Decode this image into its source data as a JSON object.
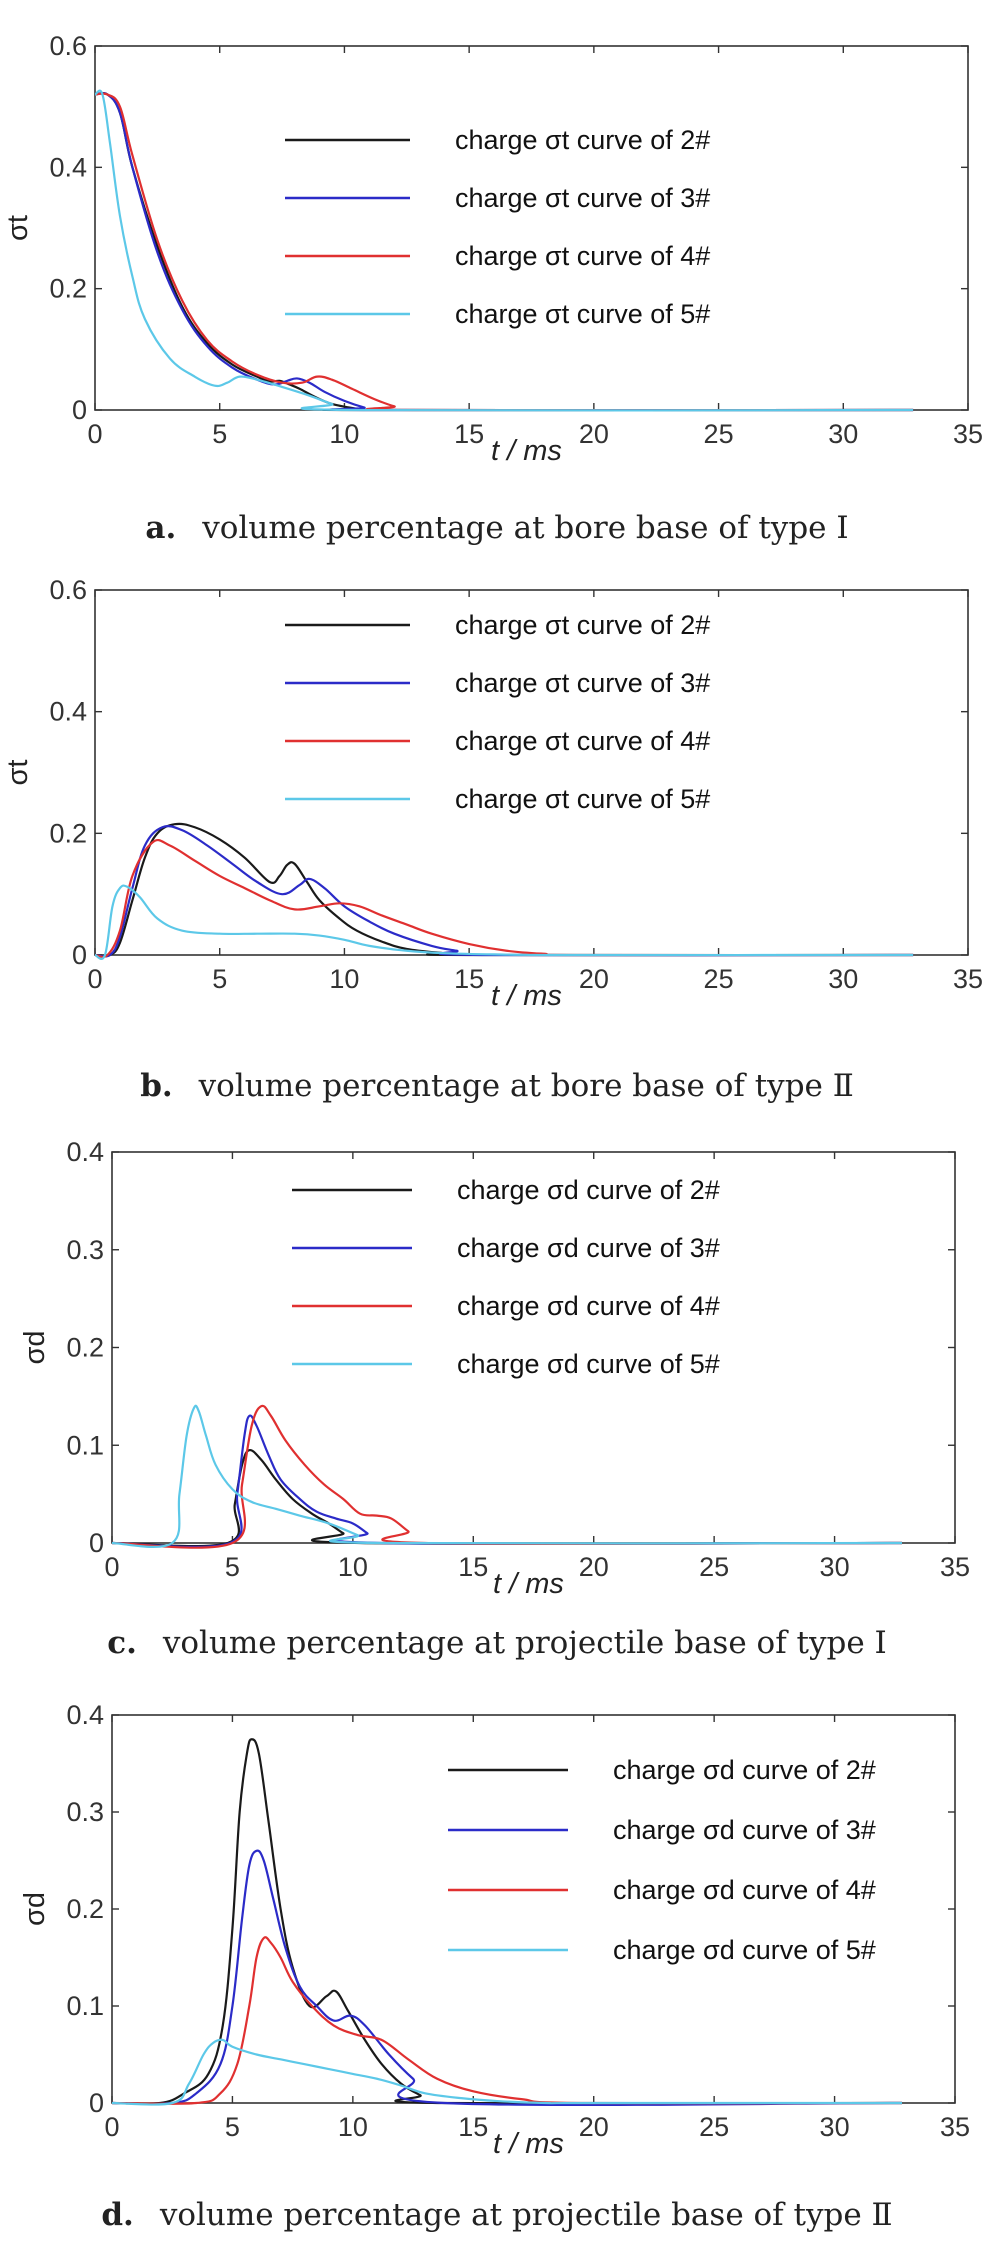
{
  "chart_data": [
    {
      "type": "line",
      "caption_label": "a.",
      "caption": "volume percentage at bore base of type Ⅰ",
      "xlabel": "t / ms",
      "ylabel": "σt",
      "xlim": [
        0,
        35
      ],
      "ylim": [
        0,
        0.6
      ],
      "xticks": [
        "0",
        "5",
        "10",
        "15",
        "20",
        "25",
        "30",
        "35"
      ],
      "yticks": [
        "0",
        "0.2",
        "0.4",
        "0.6"
      ],
      "legend_placement": "top-center",
      "series": [
        {
          "name": "charge σt curve of 2#",
          "color": "#1a1a1a",
          "x": [
            0,
            0.5,
            1.0,
            1.5,
            2.5,
            3.5,
            4.5,
            5.5,
            6.5,
            7.0,
            7.4,
            7.8,
            8.2,
            8.8,
            9.5,
            10.5,
            11.0,
            32.8
          ],
          "y": [
            0.52,
            0.52,
            0.49,
            0.4,
            0.27,
            0.17,
            0.11,
            0.075,
            0.055,
            0.047,
            0.048,
            0.042,
            0.035,
            0.022,
            0.01,
            0.002,
            0.0,
            0.0
          ]
        },
        {
          "name": "charge σt curve of 3#",
          "color": "#2b2bc8",
          "x": [
            0,
            0.5,
            1.0,
            1.5,
            2.5,
            3.5,
            4.5,
            5.5,
            6.5,
            7.2,
            7.7,
            8.1,
            8.6,
            9.2,
            10.0,
            10.8,
            11.3,
            32.8
          ],
          "y": [
            0.52,
            0.52,
            0.49,
            0.4,
            0.26,
            0.165,
            0.105,
            0.07,
            0.05,
            0.042,
            0.048,
            0.052,
            0.045,
            0.03,
            0.015,
            0.004,
            0.0,
            0.0
          ]
        },
        {
          "name": "charge σt curve of 4#",
          "color": "#e03030",
          "x": [
            0,
            0.5,
            1.0,
            1.5,
            2.5,
            3.5,
            4.5,
            5.5,
            6.5,
            7.5,
            8.3,
            8.9,
            9.5,
            10.3,
            11.2,
            12.0,
            12.7,
            32.8
          ],
          "y": [
            0.52,
            0.52,
            0.5,
            0.42,
            0.28,
            0.18,
            0.115,
            0.08,
            0.058,
            0.045,
            0.045,
            0.055,
            0.05,
            0.035,
            0.018,
            0.006,
            0.0,
            0.0
          ]
        },
        {
          "name": "charge σt curve of 5#",
          "color": "#5cc8e8",
          "x": [
            0,
            0.3,
            0.6,
            1.0,
            1.5,
            2.0,
            3.0,
            4.0,
            4.8,
            5.3,
            5.8,
            6.5,
            7.5,
            8.5,
            9.5,
            10.3,
            32.8
          ],
          "y": [
            0.52,
            0.52,
            0.44,
            0.32,
            0.22,
            0.15,
            0.085,
            0.055,
            0.04,
            0.045,
            0.055,
            0.05,
            0.038,
            0.025,
            0.01,
            0.0,
            0.0
          ]
        }
      ]
    },
    {
      "type": "line",
      "caption_label": "b.",
      "caption": "volume percentage at bore base of type Ⅱ",
      "xlabel": "t / ms",
      "ylabel": "σt",
      "xlim": [
        0,
        35
      ],
      "ylim": [
        0,
        0.6
      ],
      "xticks": [
        "0",
        "5",
        "10",
        "15",
        "20",
        "25",
        "30",
        "35"
      ],
      "yticks": [
        "0",
        "0.2",
        "0.4",
        "0.6"
      ],
      "legend_placement": "top-center",
      "series": [
        {
          "name": "charge σt curve of 2#",
          "color": "#1a1a1a",
          "x": [
            0,
            0.6,
            1.0,
            1.5,
            2.0,
            2.5,
            3.2,
            4.0,
            5.0,
            6.0,
            7.0,
            7.4,
            7.7,
            8.0,
            8.5,
            9.0,
            9.8,
            10.5,
            11.5,
            12.5,
            14.0,
            15.0,
            32.8
          ],
          "y": [
            0,
            0,
            0.02,
            0.09,
            0.16,
            0.2,
            0.215,
            0.21,
            0.19,
            0.16,
            0.12,
            0.13,
            0.148,
            0.15,
            0.12,
            0.09,
            0.06,
            0.04,
            0.022,
            0.01,
            0.003,
            0.0,
            0.0
          ]
        },
        {
          "name": "charge σt curve of 3#",
          "color": "#2b2bc8",
          "x": [
            0,
            0.6,
            1.0,
            1.5,
            2.0,
            2.7,
            3.5,
            4.5,
            5.5,
            6.5,
            7.5,
            8.2,
            8.6,
            9.2,
            10.0,
            11.0,
            12.0,
            13.5,
            14.5,
            15.5,
            32.8
          ],
          "y": [
            0,
            0,
            0.03,
            0.11,
            0.18,
            0.21,
            0.205,
            0.18,
            0.15,
            0.12,
            0.1,
            0.115,
            0.125,
            0.11,
            0.08,
            0.055,
            0.035,
            0.015,
            0.007,
            0.0,
            0.0
          ]
        },
        {
          "name": "charge σt curve of 4#",
          "color": "#e03030",
          "x": [
            0,
            0.5,
            1.0,
            1.5,
            2.3,
            3.0,
            4.0,
            5.0,
            6.0,
            7.0,
            8.0,
            9.0,
            9.8,
            10.6,
            11.5,
            12.5,
            13.5,
            15.0,
            16.5,
            18.0,
            19.5,
            32.8
          ],
          "y": [
            0,
            0,
            0.04,
            0.13,
            0.185,
            0.18,
            0.155,
            0.13,
            0.11,
            0.09,
            0.075,
            0.08,
            0.085,
            0.08,
            0.065,
            0.05,
            0.035,
            0.018,
            0.007,
            0.002,
            0.0,
            0.0
          ]
        },
        {
          "name": "charge σt curve of 5#",
          "color": "#5cc8e8",
          "x": [
            0,
            0.4,
            0.7,
            1.0,
            1.3,
            1.8,
            2.5,
            3.5,
            5.0,
            6.5,
            8.0,
            9.0,
            10.0,
            11.0,
            12.5,
            14.0,
            16.0,
            19.0,
            32.8
          ],
          "y": [
            0,
            0,
            0.08,
            0.11,
            0.112,
            0.095,
            0.06,
            0.04,
            0.035,
            0.035,
            0.035,
            0.032,
            0.025,
            0.015,
            0.007,
            0.003,
            0.001,
            0.0,
            0.0
          ]
        }
      ]
    },
    {
      "type": "line",
      "caption_label": "c.",
      "caption": "volume percentage at projectile base of type Ⅰ",
      "xlabel": "t / ms",
      "ylabel": "σd",
      "xlim": [
        0,
        35
      ],
      "ylim": [
        0,
        0.4
      ],
      "xticks": [
        "0",
        "5",
        "10",
        "15",
        "20",
        "25",
        "30",
        "35"
      ],
      "yticks": [
        "0",
        "0.1",
        "0.2",
        "0.3",
        "0.4"
      ],
      "legend_placement": "top-center",
      "series": [
        {
          "name": "charge σd curve of 2#",
          "color": "#1a1a1a",
          "x": [
            0,
            4.8,
            5.1,
            5.4,
            5.7,
            6.2,
            6.8,
            7.5,
            8.3,
            9.0,
            9.6,
            10.3,
            32.8
          ],
          "y": [
            0,
            0,
            0.04,
            0.08,
            0.095,
            0.085,
            0.065,
            0.045,
            0.03,
            0.02,
            0.01,
            0.0,
            0.0
          ]
        },
        {
          "name": "charge σd curve of 3#",
          "color": "#2b2bc8",
          "x": [
            0,
            4.9,
            5.2,
            5.5,
            5.7,
            6.0,
            6.5,
            7.0,
            7.8,
            8.5,
            9.3,
            10.0,
            10.6,
            11.2,
            32.8
          ],
          "y": [
            0,
            0,
            0.05,
            0.11,
            0.13,
            0.12,
            0.09,
            0.065,
            0.045,
            0.032,
            0.025,
            0.02,
            0.01,
            0.0,
            0.0
          ]
        },
        {
          "name": "charge σd curve of 4#",
          "color": "#e03030",
          "x": [
            0,
            5.0,
            5.4,
            5.8,
            6.2,
            6.6,
            7.2,
            8.0,
            8.8,
            9.6,
            10.3,
            11.0,
            11.6,
            12.3,
            13.0,
            32.8
          ],
          "y": [
            0,
            0,
            0.06,
            0.12,
            0.14,
            0.13,
            0.105,
            0.08,
            0.06,
            0.045,
            0.03,
            0.028,
            0.025,
            0.012,
            0.0,
            0.0
          ]
        },
        {
          "name": "charge σd curve of 5#",
          "color": "#5cc8e8",
          "x": [
            0,
            2.5,
            2.8,
            3.1,
            3.4,
            3.6,
            3.9,
            4.3,
            5.0,
            5.8,
            6.8,
            7.8,
            9.0,
            10.2,
            11.0,
            32.8
          ],
          "y": [
            0,
            0,
            0.05,
            0.11,
            0.138,
            0.135,
            0.11,
            0.08,
            0.055,
            0.042,
            0.035,
            0.028,
            0.02,
            0.008,
            0.0,
            0.0
          ]
        }
      ]
    },
    {
      "type": "line",
      "caption_label": "d.",
      "caption": "volume percentage at projectile base of type Ⅱ",
      "xlabel": "t / ms",
      "ylabel": "σd",
      "xlim": [
        0,
        35
      ],
      "ylim": [
        0,
        0.4
      ],
      "xticks": [
        "0",
        "5",
        "10",
        "15",
        "20",
        "25",
        "30",
        "35"
      ],
      "yticks": [
        "0",
        "0.1",
        "0.2",
        "0.3",
        "0.4"
      ],
      "legend_placement": "right",
      "series": [
        {
          "name": "charge σd curve of 2#",
          "color": "#1a1a1a",
          "x": [
            0,
            2.0,
            3.0,
            4.0,
            4.6,
            5.0,
            5.3,
            5.6,
            5.8,
            6.1,
            6.5,
            7.0,
            7.5,
            8.2,
            8.9,
            9.3,
            9.8,
            10.5,
            11.2,
            12.0,
            12.8,
            13.5,
            32.8
          ],
          "y": [
            0,
            0,
            0.01,
            0.03,
            0.08,
            0.18,
            0.3,
            0.36,
            0.375,
            0.36,
            0.29,
            0.2,
            0.14,
            0.1,
            0.11,
            0.115,
            0.095,
            0.065,
            0.04,
            0.02,
            0.008,
            0.0,
            0.0
          ]
        },
        {
          "name": "charge σd curve of 3#",
          "color": "#2b2bc8",
          "x": [
            0,
            2.5,
            3.5,
            4.5,
            5.0,
            5.4,
            5.7,
            6.0,
            6.3,
            6.7,
            7.2,
            7.8,
            8.5,
            9.2,
            9.9,
            10.5,
            11.5,
            12.5,
            13.8,
            32.8
          ],
          "y": [
            0,
            0,
            0.01,
            0.04,
            0.1,
            0.19,
            0.245,
            0.26,
            0.25,
            0.21,
            0.16,
            0.12,
            0.1,
            0.085,
            0.09,
            0.08,
            0.05,
            0.025,
            0.0,
            0.0
          ]
        },
        {
          "name": "charge σd curve of 4#",
          "color": "#e03030",
          "x": [
            0,
            3.5,
            4.5,
            5.2,
            5.7,
            6.0,
            6.3,
            6.6,
            7.0,
            7.5,
            8.3,
            9.2,
            10.2,
            11.2,
            12.3,
            13.5,
            15.0,
            17.0,
            19.5,
            32.8
          ],
          "y": [
            0,
            0,
            0.01,
            0.04,
            0.1,
            0.15,
            0.17,
            0.165,
            0.15,
            0.125,
            0.1,
            0.08,
            0.07,
            0.065,
            0.045,
            0.025,
            0.012,
            0.004,
            0.0,
            0.0
          ]
        },
        {
          "name": "charge σd curve of 5#",
          "color": "#5cc8e8",
          "x": [
            0,
            2.5,
            3.2,
            3.8,
            4.2,
            4.6,
            5.0,
            6.0,
            7.0,
            8.0,
            9.0,
            10.0,
            11.0,
            12.0,
            13.0,
            14.5,
            16.0,
            18.0,
            20.0,
            32.8
          ],
          "y": [
            0,
            0,
            0.02,
            0.05,
            0.062,
            0.065,
            0.058,
            0.05,
            0.045,
            0.04,
            0.035,
            0.03,
            0.025,
            0.018,
            0.01,
            0.005,
            0.002,
            0.0,
            0.0,
            0.0
          ]
        }
      ]
    }
  ]
}
